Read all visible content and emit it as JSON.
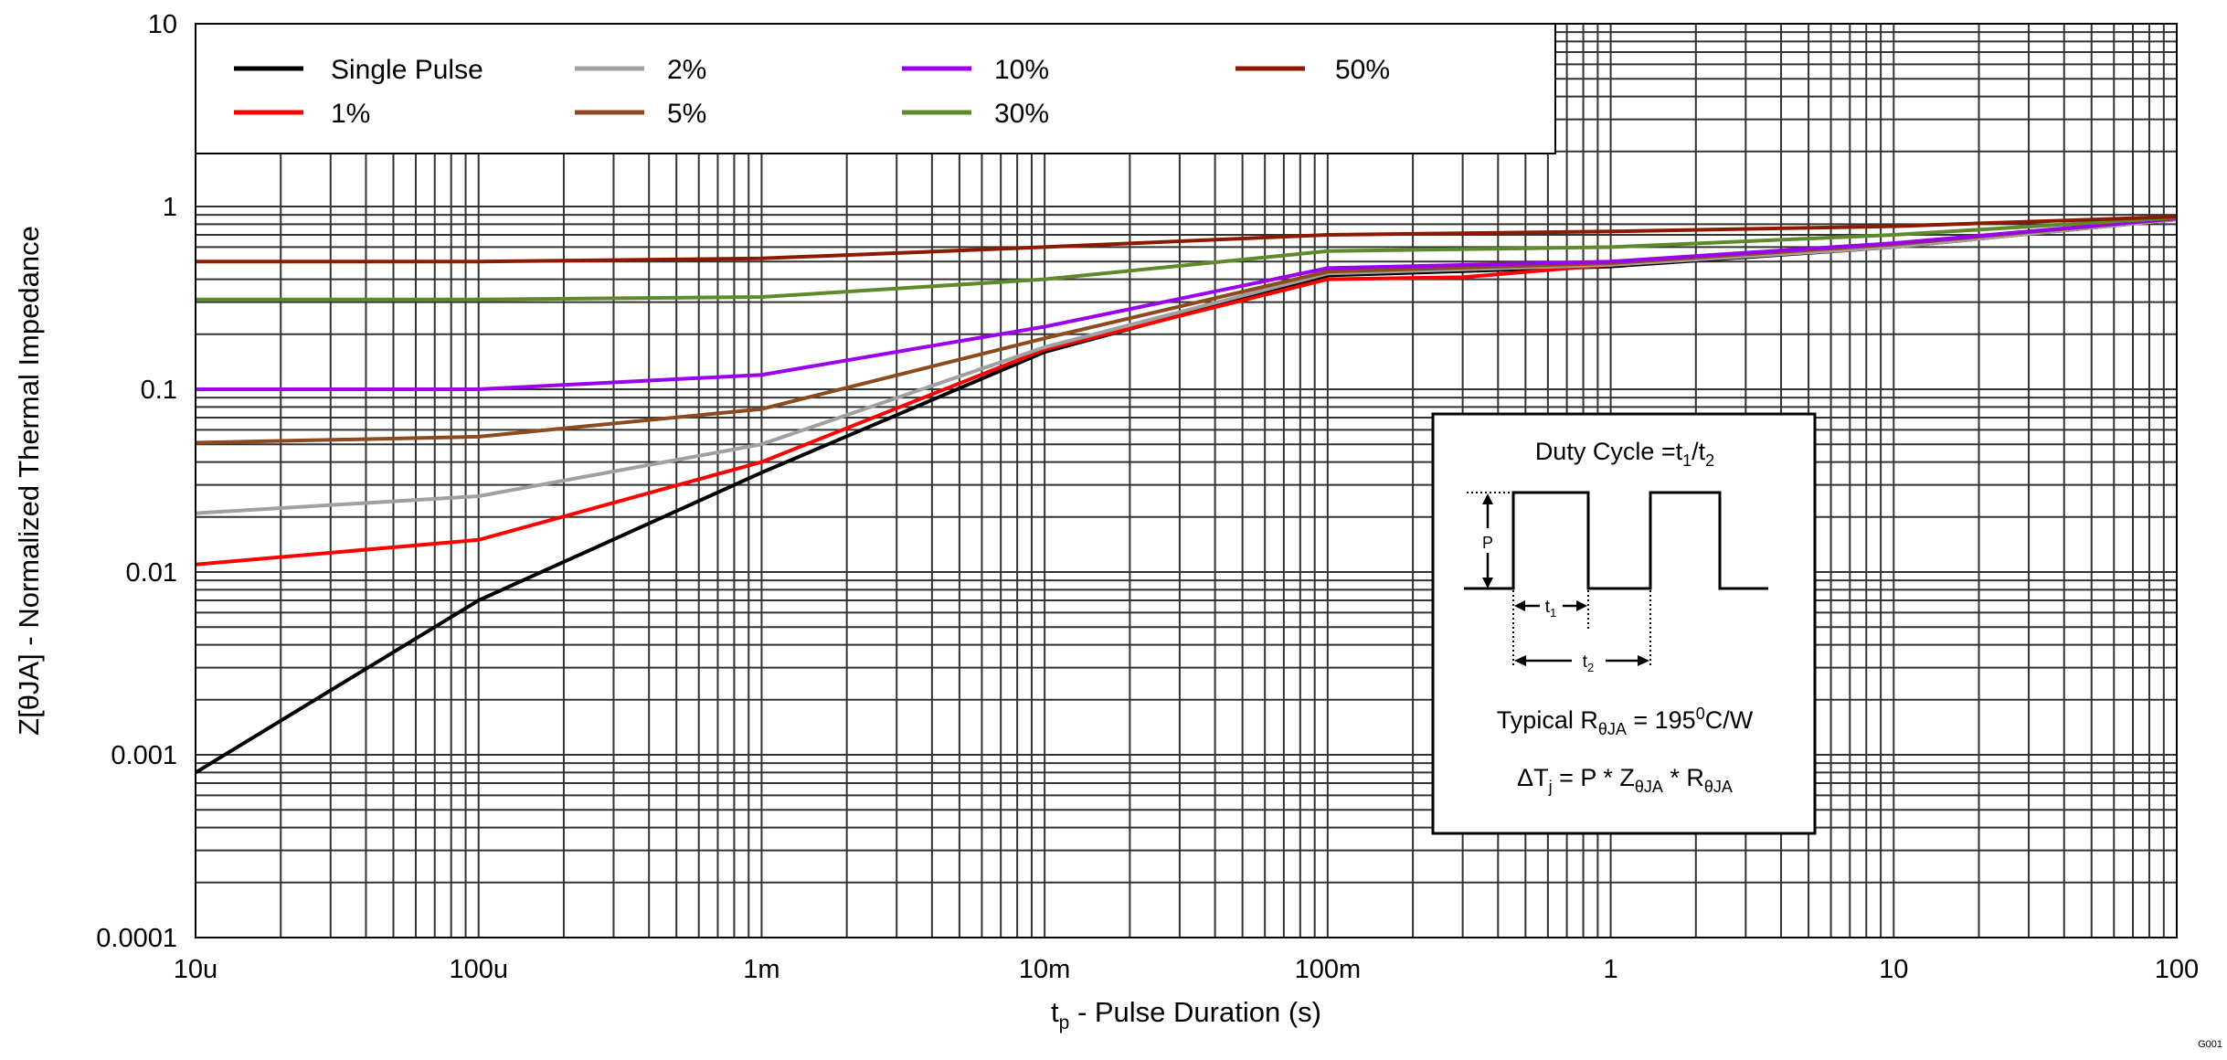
{
  "chart_data": {
    "type": "line",
    "x_scale": "log",
    "y_scale": "log",
    "xlim": [
      1e-05,
      100
    ],
    "ylim": [
      0.0001,
      10
    ],
    "grid": true,
    "legend_placement": "top-left",
    "xlabel": {
      "main": "t",
      "sub": "p",
      "rest": " - Pulse Duration (s)"
    },
    "ylabel": "Z[θJA] - Normalized Thermal Impedance",
    "x_ticks": [
      {
        "value": 1e-05,
        "label": "10u"
      },
      {
        "value": 0.0001,
        "label": "100u"
      },
      {
        "value": 0.001,
        "label": "1m"
      },
      {
        "value": 0.01,
        "label": "10m"
      },
      {
        "value": 0.1,
        "label": "100m"
      },
      {
        "value": 1,
        "label": "1"
      },
      {
        "value": 10,
        "label": "10"
      },
      {
        "value": 100,
        "label": "100"
      }
    ],
    "y_ticks": [
      {
        "value": 10,
        "label": "10"
      },
      {
        "value": 1,
        "label": "1"
      },
      {
        "value": 0.1,
        "label": "0.1"
      },
      {
        "value": 0.01,
        "label": "0.01"
      },
      {
        "value": 0.001,
        "label": "0.001"
      },
      {
        "value": 0.0001,
        "label": "0.0001"
      }
    ],
    "series": [
      {
        "name": "Single Pulse",
        "color": "#000000",
        "x": [
          1e-05,
          0.0001,
          0.001,
          0.01,
          0.1,
          1,
          10,
          100
        ],
        "y": [
          0.0008,
          0.007,
          0.035,
          0.16,
          0.42,
          0.47,
          0.6,
          0.85
        ]
      },
      {
        "name": "1%",
        "color": "#ff0000",
        "x": [
          1e-05,
          0.0001,
          0.001,
          0.01,
          0.1,
          0.3,
          1,
          10,
          100
        ],
        "y": [
          0.011,
          0.015,
          0.04,
          0.165,
          0.4,
          0.41,
          0.48,
          0.6,
          0.85
        ]
      },
      {
        "name": "2%",
        "color": "#a0a0a0",
        "x": [
          1e-05,
          0.0001,
          0.001,
          0.01,
          0.1,
          1,
          10,
          100
        ],
        "y": [
          0.021,
          0.026,
          0.05,
          0.17,
          0.43,
          0.48,
          0.6,
          0.85
        ]
      },
      {
        "name": "5%",
        "color": "#8c4a1e",
        "x": [
          1e-05,
          0.0001,
          0.001,
          0.01,
          0.1,
          1,
          10,
          100
        ],
        "y": [
          0.051,
          0.055,
          0.078,
          0.19,
          0.44,
          0.49,
          0.62,
          0.86
        ]
      },
      {
        "name": "10%",
        "color": "#9b00f0",
        "x": [
          1e-05,
          0.0001,
          0.001,
          0.01,
          0.1,
          1,
          10,
          100
        ],
        "y": [
          0.1,
          0.1,
          0.12,
          0.22,
          0.46,
          0.5,
          0.63,
          0.86
        ]
      },
      {
        "name": "30%",
        "color": "#5e8a2c",
        "x": [
          1e-05,
          0.0001,
          0.001,
          0.01,
          0.1,
          1,
          10,
          100
        ],
        "y": [
          0.31,
          0.31,
          0.32,
          0.4,
          0.57,
          0.6,
          0.7,
          0.87
        ]
      },
      {
        "name": "50%",
        "color": "#8b1a00",
        "x": [
          1e-05,
          0.0001,
          0.001,
          0.01,
          0.1,
          1,
          10,
          100
        ],
        "y": [
          0.5,
          0.5,
          0.52,
          0.6,
          0.7,
          0.73,
          0.78,
          0.88
        ]
      }
    ],
    "inset": {
      "title": {
        "text": "Duty Cycle =t",
        "s1": "1",
        "slash": "/t",
        "s2": "2"
      },
      "p_label": "P",
      "t1_label": {
        "main": "t",
        "sub": "1"
      },
      "t2_label": {
        "main": "t",
        "sub": "2"
      },
      "typical": {
        "pre": "Typical R",
        "sub": "θJA",
        "mid": " = 195",
        "sup": "0",
        "post": "C/W"
      },
      "formula": {
        "a": "ΔT",
        "asub": "j",
        "b": " = P * Z",
        "bsub": "θJA",
        "c": " * R",
        "csub": "θJA"
      }
    },
    "footnote": "G001"
  }
}
